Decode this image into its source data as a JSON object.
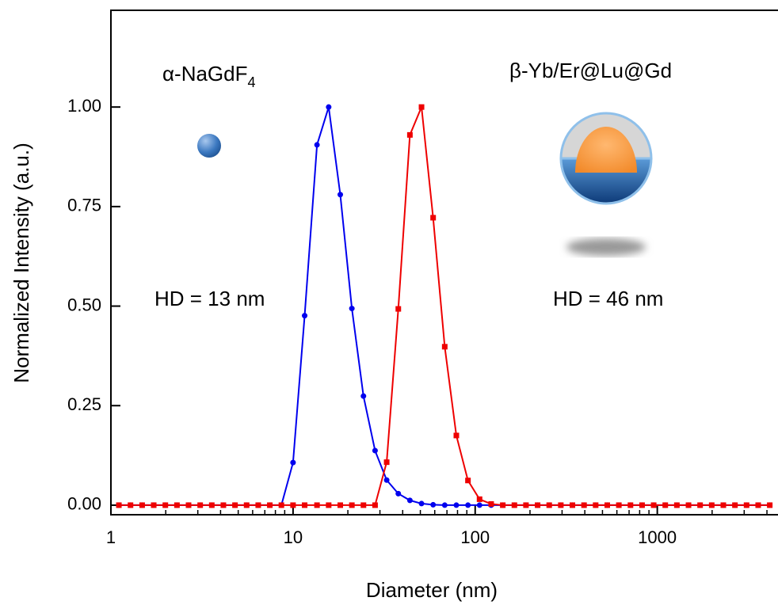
{
  "chart_data": {
    "type": "line",
    "xlabel": "Diameter (nm)",
    "ylabel": "Normalized Intensity (a.u.)",
    "xscale": "log",
    "x": [
      1.106,
      1.281,
      1.484,
      1.718,
      1.99,
      2.305,
      2.669,
      3.091,
      3.58,
      4.145,
      4.801,
      5.56,
      6.439,
      7.456,
      8.63,
      10.0,
      11.58,
      13.54,
      15.69,
      18.17,
      21.04,
      24.36,
      28.21,
      32.67,
      37.84,
      43.82,
      50.75,
      58.77,
      68.06,
      78.82,
      91.28,
      105.7,
      122.4,
      141.8,
      164.2,
      190.1,
      220.2,
      255.0,
      295.3,
      342.0,
      396.1,
      458.7,
      531.2,
      615.1,
      712.4,
      825.0,
      955.4,
      1106,
      1281,
      1484,
      1718,
      1990,
      2305,
      2669,
      3091,
      3580,
      4145
    ],
    "series": [
      {
        "color": "#0000ee",
        "marker": "circle",
        "values": [
          0,
          0,
          0,
          0,
          0,
          0,
          0,
          0,
          0,
          0,
          0,
          0,
          0,
          0,
          0,
          0.107,
          0.476,
          0.905,
          1.0,
          0.78,
          0.494,
          0.274,
          0.137,
          0.063,
          0.029,
          0.012,
          0.004,
          0.001,
          0,
          0,
          0,
          0,
          0,
          0,
          0,
          0,
          0,
          0,
          0,
          0,
          0,
          0,
          0,
          0,
          0,
          0,
          0,
          0,
          0,
          0,
          0,
          0,
          0,
          0,
          0,
          0,
          0
        ]
      },
      {
        "color": "#ee0000",
        "marker": "square",
        "values": [
          0,
          0,
          0,
          0,
          0,
          0,
          0,
          0,
          0,
          0,
          0,
          0,
          0,
          0,
          0,
          0,
          0,
          0,
          0,
          0,
          0,
          0,
          0,
          0.108,
          0.493,
          0.93,
          1.0,
          0.722,
          0.398,
          0.175,
          0.062,
          0.015,
          0.003,
          0,
          0,
          0,
          0,
          0,
          0,
          0,
          0,
          0,
          0,
          0,
          0,
          0,
          0,
          0,
          0,
          0,
          0,
          0,
          0,
          0,
          0,
          0,
          0
        ]
      }
    ],
    "xlim": [
      1,
      4600
    ],
    "xticks": [
      1,
      10,
      100,
      1000
    ],
    "ylim": [
      -0.024,
      1.243
    ],
    "yticks": [
      {
        "value": 0,
        "label": "0.00"
      },
      {
        "value": 0.25,
        "label": "0.25"
      },
      {
        "value": 0.5,
        "label": "0.50"
      },
      {
        "value": 0.75,
        "label": "0.75"
      },
      {
        "value": 1,
        "label": "1.00"
      }
    ],
    "annotations": [
      {
        "text": "α-NaGdF",
        "sub": "4"
      },
      {
        "text": "β-Yb/Er@Lu@Gd"
      },
      {
        "text": "HD = 13 nm"
      },
      {
        "text": "HD = 46 nm"
      }
    ]
  }
}
